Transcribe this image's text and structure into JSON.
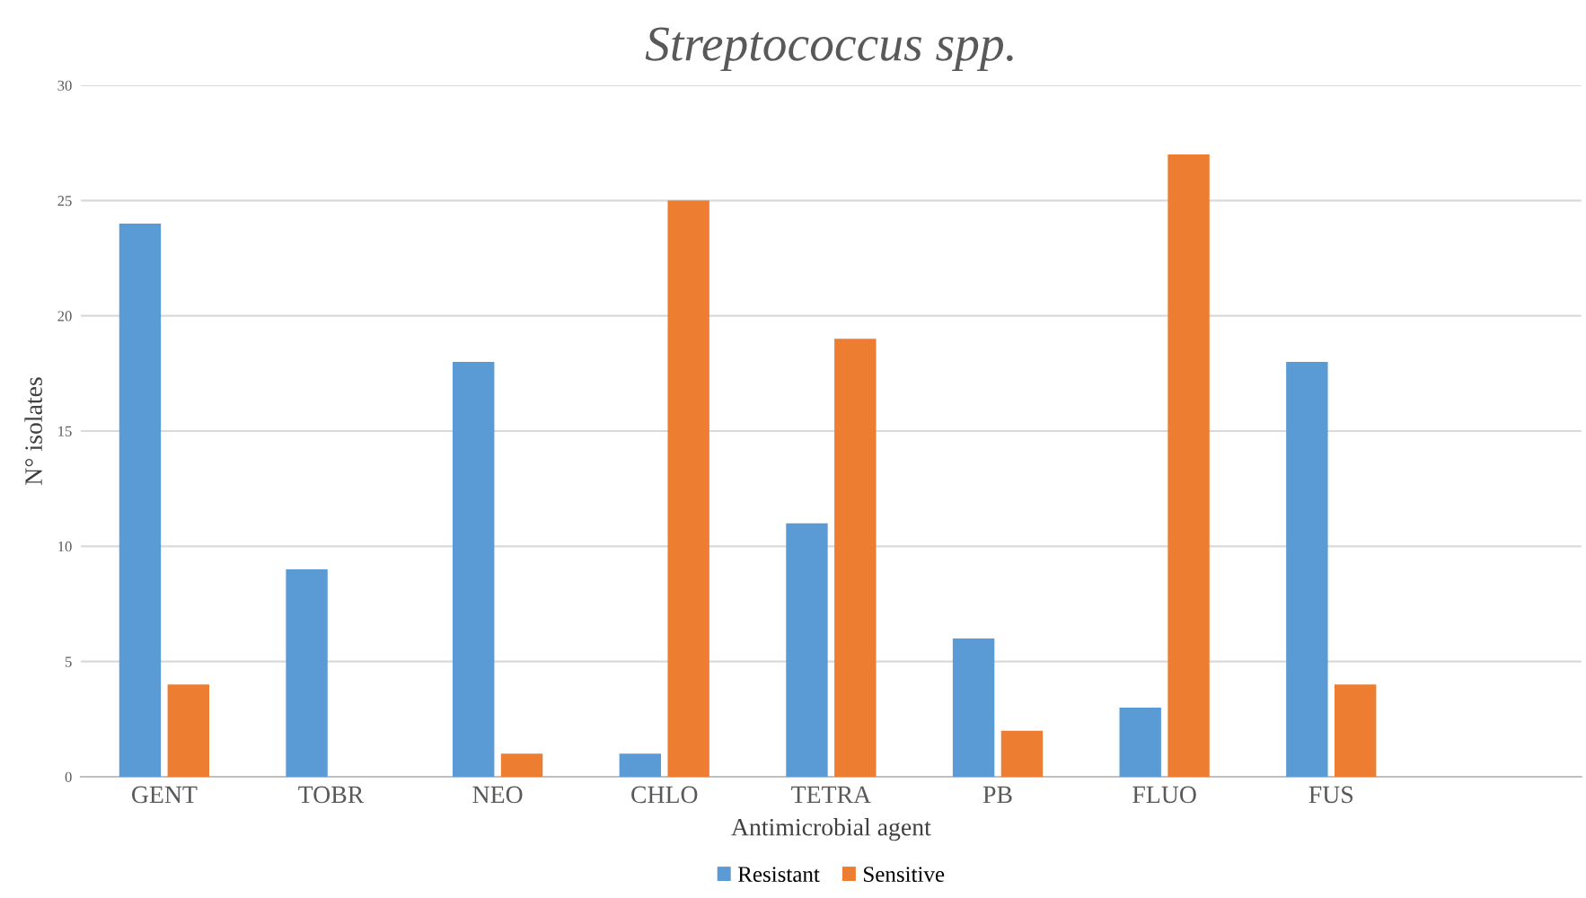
{
  "chart_data": {
    "type": "bar",
    "title": "Streptococcus spp.",
    "xlabel": "Antimicrobial agent",
    "ylabel": "N° isolates",
    "categories": [
      "GENT",
      "TOBR",
      "NEO",
      "CHLO",
      "TETRA",
      "PB",
      "FLUO",
      "FUS",
      null
    ],
    "series": [
      {
        "name": "Resistant",
        "color": "#5b9bd5",
        "values": [
          24,
          9,
          18,
          1,
          11,
          6,
          3,
          18,
          null
        ]
      },
      {
        "name": "Sensitive",
        "color": "#ed7d31",
        "values": [
          4,
          0,
          1,
          25,
          19,
          2,
          27,
          4,
          null
        ]
      }
    ],
    "ylim": [
      0,
      30
    ],
    "yticks": [
      0,
      5,
      10,
      15,
      20,
      25,
      30
    ],
    "grid": "y",
    "legend": "bottom"
  }
}
